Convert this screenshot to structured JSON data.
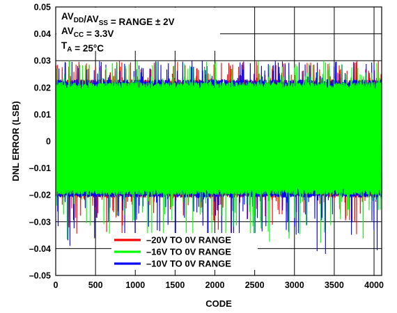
{
  "chart_data": {
    "type": "line",
    "xlabel": "CODE",
    "ylabel": "DNL ERROR (LSB)",
    "xlim": [
      0,
      4096
    ],
    "ylim": [
      -0.05,
      0.05
    ],
    "xticks": [
      0,
      500,
      1000,
      1500,
      2000,
      2500,
      3000,
      3500,
      4000
    ],
    "yticks": [
      -0.05,
      -0.04,
      -0.03,
      -0.02,
      -0.01,
      0,
      0.01,
      0.02,
      0.03,
      0.04,
      0.05
    ],
    "xtick_labels": [
      "0",
      "500",
      "1000",
      "1500",
      "2000",
      "2500",
      "3000",
      "3500",
      "4000"
    ],
    "ytick_labels": [
      "–0.05",
      "–0.04",
      "–0.03",
      "–0.02",
      "–0.01",
      "0",
      "0.01",
      "0.02",
      "0.03",
      "0.04",
      "0.05"
    ],
    "grid": true,
    "legend_position": "bottom-center",
    "annotations": {
      "line1": {
        "a": "AV",
        "a_sub": "DD",
        "b": "/AV",
        "b_sub": "SS",
        "c": " = RANGE ± 2V"
      },
      "line2": {
        "a": "AV",
        "a_sub": "CC",
        "c": " = 3.3V"
      },
      "line3": {
        "a": "T",
        "a_sub": "A",
        "c": " = 25°C"
      }
    },
    "series": [
      {
        "name": "–20V TO 0V RANGE",
        "color": "#ff0000",
        "x_range": [
          0,
          4095
        ],
        "typical_band": [
          -0.021,
          0.023
        ],
        "peak_max": 0.03,
        "peak_min": -0.035
      },
      {
        "name": "–10V TO 0V RANGE",
        "color": "#0000ff",
        "x_range": [
          0,
          4095
        ],
        "typical_band": [
          -0.021,
          0.023
        ],
        "peak_max": 0.03,
        "peak_min": -0.042
      },
      {
        "name": "–16V TO 0V RANGE",
        "color": "#00ff00",
        "x_range": [
          0,
          4095
        ],
        "typical_band": [
          -0.02,
          0.022
        ],
        "peak_max": 0.03,
        "peak_min": -0.038
      }
    ],
    "legend_order": [
      0,
      2,
      1
    ]
  }
}
